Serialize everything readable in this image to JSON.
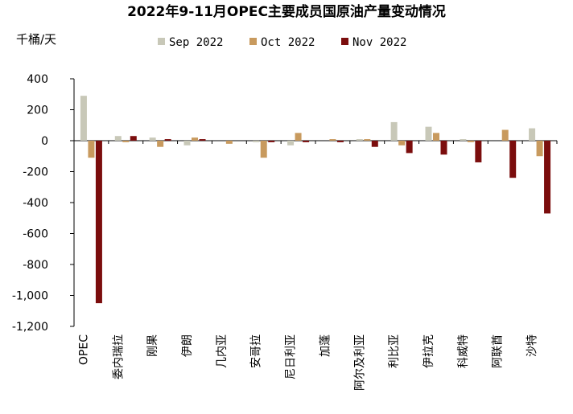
{
  "chart_data": {
    "type": "bar",
    "title": "2022年9-11月OPEC主要成员国原油产量变动情况",
    "ylabel": "千桶/天",
    "xlabel": "",
    "ylim": [
      -1200,
      400
    ],
    "yticks": [
      400,
      200,
      0,
      -200,
      -400,
      -600,
      -800,
      -1000,
      -1200
    ],
    "ytick_labels": [
      "400",
      "200",
      "0",
      "-200",
      "-400",
      "-600",
      "-800",
      "-1,000",
      "-1,200"
    ],
    "legend_position": "top",
    "categories": [
      "OPEC",
      "委内瑞拉",
      "刚果",
      "伊朗",
      "几内亚",
      "安哥拉",
      "尼日利亚",
      "加蓬",
      "阿尔及利亚",
      "利比亚",
      "伊拉克",
      "科威特",
      "阿联酋",
      "沙特"
    ],
    "series": [
      {
        "name": "Sep 2022",
        "color": "#c8c8b8",
        "values": [
          290,
          30,
          20,
          -30,
          0,
          -10,
          -30,
          0,
          10,
          120,
          90,
          10,
          0,
          80
        ]
      },
      {
        "name": "Oct 2022",
        "color": "#c89a5e",
        "values": [
          -110,
          -10,
          -40,
          20,
          -20,
          -110,
          50,
          10,
          10,
          -30,
          50,
          -10,
          70,
          -100
        ]
      },
      {
        "name": "Nov 2022",
        "color": "#7b0d0d",
        "values": [
          -1050,
          30,
          10,
          10,
          0,
          -10,
          -10,
          -10,
          -40,
          -80,
          -90,
          -140,
          -240,
          -470
        ]
      }
    ]
  }
}
